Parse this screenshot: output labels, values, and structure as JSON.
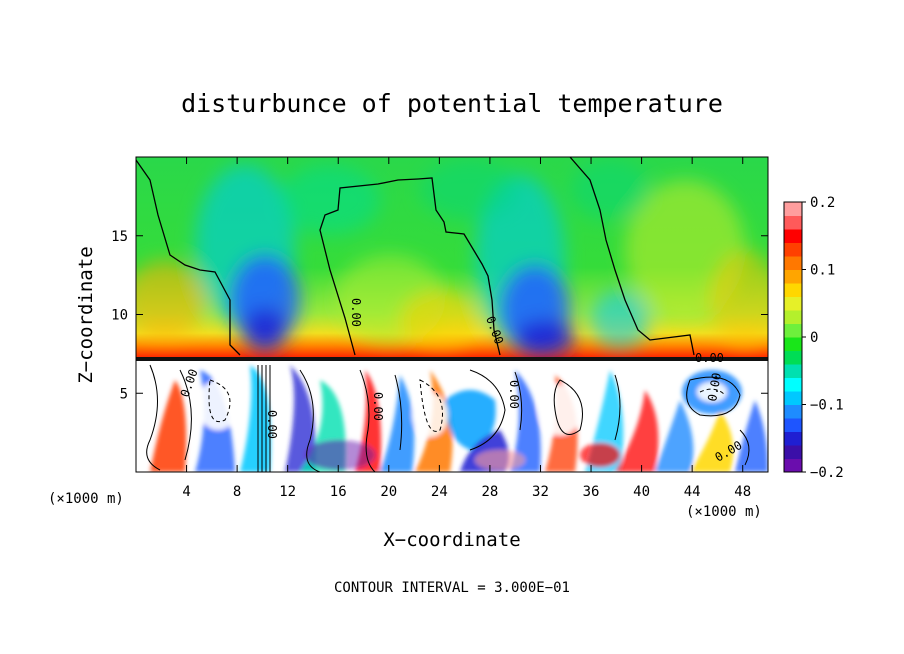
{
  "chart_data": {
    "type": "heatmap",
    "title": "disturbunce of potential temperature",
    "xlabel": "X−coordinate",
    "ylabel": "Z−coordinate",
    "x_unit_left": "(×1000 m)",
    "x_unit_right": "(×1000 m)",
    "footer": "CONTOUR INTERVAL = 3.000E−01",
    "xlim": [
      0,
      50
    ],
    "ylim": [
      0,
      20
    ],
    "x_ticks": [
      4,
      8,
      12,
      16,
      20,
      24,
      28,
      32,
      36,
      40,
      44,
      48
    ],
    "y_ticks": [
      5,
      10,
      15
    ],
    "colorbar": {
      "range": [
        -0.2,
        0.2
      ],
      "tick_values": [
        0.2,
        0.1,
        0,
        -0.1,
        -0.2
      ],
      "tick_labels": [
        "0.2",
        "0.1",
        "0",
        "−0.1",
        "−0.2"
      ],
      "colors": [
        "#6a0dad",
        "#3b0fa8",
        "#1f1fd2",
        "#1e55ff",
        "#1e8cff",
        "#00c8ff",
        "#00ffff",
        "#00e0b0",
        "#00dd55",
        "#19e619",
        "#6ef03c",
        "#b4f02c",
        "#e6f028",
        "#ffd700",
        "#ffa500",
        "#ff7800",
        "#ff4000",
        "#ff0000",
        "#ff5a5a",
        "#ff9e9e"
      ]
    },
    "contour_labels": [
      "0.00",
      "0.00",
      "0.00",
      "0.00",
      "0.00",
      "0.00",
      "0.00",
      "0.00",
      "0.00"
    ],
    "upper_region": {
      "z_range": [
        7.3,
        20
      ],
      "anomalies": [
        {
          "x": 11,
          "z": 9.5,
          "value": -0.13
        },
        {
          "x": 29.5,
          "z": 9.5,
          "value": -0.13
        },
        {
          "x": 20,
          "z": 11,
          "value": 0.05
        },
        {
          "x": 2,
          "z": 9,
          "value": 0.12
        },
        {
          "x": 25,
          "z": 8.5,
          "value": 0.12
        },
        {
          "x": 48,
          "z": 9,
          "value": 0.09
        },
        {
          "x": 44,
          "z": 16,
          "value": 0.06
        },
        {
          "x": 7,
          "z": 16,
          "value": -0.05
        },
        {
          "x": 30,
          "z": 18,
          "value": -0.05
        }
      ]
    },
    "lower_region": {
      "z_range": [
        0,
        7.3
      ],
      "description_value_range": [
        -0.2,
        0.2
      ]
    }
  }
}
